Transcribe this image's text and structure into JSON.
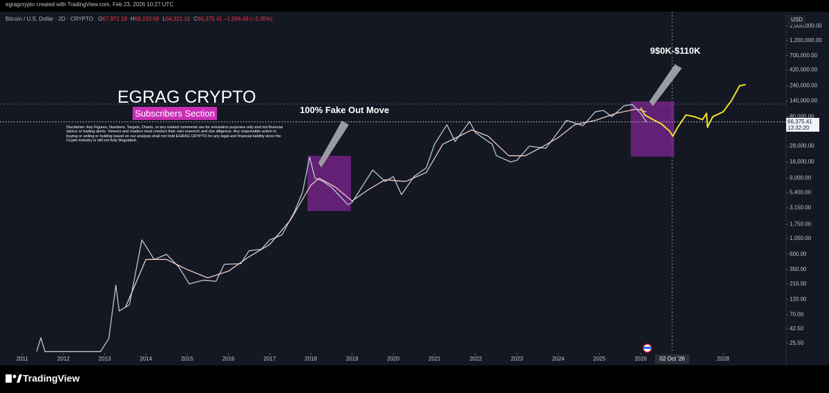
{
  "header": {
    "byline": "egragcrypto created with TradingView.com, Feb 23, 2026 10:27 UTC"
  },
  "chart_data": {
    "type": "line",
    "symbol": "Bitcoin / U.S. Dollar · 2D · CRYPTO",
    "ohlc": [
      {
        "label": "O",
        "value": "67,972.19"
      },
      {
        "label": "H",
        "value": "68,233.08"
      },
      {
        "label": "L",
        "value": "64,321.15"
      },
      {
        "label": "C",
        "value": "66,375.41"
      }
    ],
    "change": "−1,596.48 (−2.35%)",
    "currency": "USD",
    "log_scale": true,
    "xlim": [
      2010.46,
      2029.53
    ],
    "ylim": [
      18,
      3250000
    ],
    "xticks": [
      2011,
      2012,
      2013,
      2014,
      2015,
      2016,
      2017,
      2018,
      2019,
      2020,
      2021,
      2022,
      2023,
      2024,
      2025,
      2026,
      2028
    ],
    "yticks": [
      {
        "value": 2000000,
        "label": "2,000,000.00"
      },
      {
        "value": 1200000,
        "label": "1,200,000.00"
      },
      {
        "value": 700000,
        "label": "700,000.00"
      },
      {
        "value": 420000,
        "label": "420,000.00"
      },
      {
        "value": 240000,
        "label": "240,000.00"
      },
      {
        "value": 140000,
        "label": "140,000.00"
      },
      {
        "value": 80000,
        "label": "80,000.00"
      },
      {
        "value": 28000,
        "label": "28,000.00"
      },
      {
        "value": 16000,
        "label": "16,000.00"
      },
      {
        "value": 9000,
        "label": "9,000.00"
      },
      {
        "value": 5400,
        "label": "5,400.00"
      },
      {
        "value": 3150,
        "label": "3,150.00"
      },
      {
        "value": 1750,
        "label": "1,750.00"
      },
      {
        "value": 1050,
        "label": "1,050.00"
      },
      {
        "value": 600,
        "label": "600.00"
      },
      {
        "value": 350,
        "label": "350.00"
      },
      {
        "value": 210,
        "label": "210.00"
      },
      {
        "value": 120,
        "label": "120.00"
      },
      {
        "value": 70,
        "label": "70.00"
      },
      {
        "value": 42.5,
        "label": "42.50"
      },
      {
        "value": 25.5,
        "label": "25.50"
      }
    ],
    "series": [
      {
        "color": "#b9ccd8",
        "x": [
          2011.35,
          2011.45,
          2011.55,
          2012.9,
          2013.1,
          2013.27,
          2013.35,
          2013.6,
          2013.9,
          2014.0,
          2014.2,
          2014.5,
          2014.8,
          2015.05,
          2015.4,
          2015.7,
          2015.9,
          2016.3,
          2016.5,
          2016.8,
          2017.0,
          2017.3,
          2017.6,
          2017.8,
          2017.97,
          2018.1,
          2018.3,
          2018.5,
          2018.9,
          2019.0,
          2019.5,
          2019.8,
          2020.0,
          2020.2,
          2020.5,
          2020.8,
          2021.0,
          2021.3,
          2021.5,
          2021.85,
          2022.0,
          2022.4,
          2022.5,
          2022.85,
          2023.0,
          2023.3,
          2023.7,
          2023.95,
          2024.2,
          2024.6,
          2024.9,
          2025.1,
          2025.3,
          2025.6,
          2025.8,
          2026.0,
          2026.14
        ],
        "values": [
          19,
          31,
          19,
          19,
          30,
          200,
          80,
          100,
          1000,
          800,
          500,
          600,
          380,
          210,
          240,
          230,
          420,
          430,
          680,
          720,
          1000,
          1200,
          2700,
          5500,
          19000,
          9000,
          8000,
          6500,
          3500,
          3800,
          12000,
          8000,
          9500,
          5000,
          9500,
          13000,
          30000,
          60000,
          33000,
          67000,
          45000,
          30000,
          20000,
          16000,
          17000,
          28000,
          26000,
          42000,
          70000,
          58000,
          95000,
          100000,
          80000,
          118000,
          123000,
          90000,
          66375
        ]
      },
      {
        "color": "#f1cfc4",
        "x": [
          2013.5,
          2014.0,
          2014.5,
          2015.0,
          2015.5,
          2016.0,
          2016.5,
          2017.0,
          2017.5,
          2018.0,
          2018.2,
          2018.6,
          2019.0,
          2019.4,
          2019.8,
          2020.3,
          2020.8,
          2021.2,
          2021.6,
          2021.9,
          2022.3,
          2022.8,
          2023.2,
          2023.6,
          2024.0,
          2024.4,
          2024.9,
          2025.4,
          2025.9,
          2026.14
        ],
        "values": [
          90,
          500,
          500,
          350,
          260,
          330,
          550,
          850,
          2000,
          7000,
          9000,
          6500,
          4000,
          6000,
          8500,
          8000,
          11000,
          30000,
          40000,
          50000,
          40000,
          20000,
          20000,
          27000,
          38000,
          60000,
          70000,
          90000,
          105000,
          95000
        ]
      },
      {
        "color": "#f5e22b",
        "x": [
          2026.0,
          2026.1,
          2026.3,
          2026.5,
          2026.7,
          2026.78,
          2026.9,
          2027.1,
          2027.3,
          2027.5,
          2027.6,
          2027.62,
          2027.75,
          2028.0,
          2028.2,
          2028.4,
          2028.55
        ],
        "values": [
          110000,
          85000,
          72000,
          62000,
          48000,
          40000,
          55000,
          85000,
          80000,
          72000,
          90000,
          55000,
          80000,
          95000,
          140000,
          240000,
          250000
        ]
      }
    ],
    "last_price": {
      "value": 66375.41,
      "label": "66,375.41"
    },
    "countdown": "13:32:20",
    "crosshair_label": "02 Oct '26",
    "annotations": {
      "title": "EGRAG CRYPTO",
      "subtitle": "Subscribers Section",
      "disclaimer": "Disclaimer: Any Figures, Numbers, Targets, Charts, or any related comments are for simulation purposes only and not financial advice or trading alerts. Viewers and readers must conduct their own research and due diligence. Any responsible action in buying or selling or holding based on our analysis shall not hold EGRAG CRYPTO for any legal and financial liability since the Crypto industry is still not fully Regulated.",
      "fake_out": "100% Fake Out Move",
      "target": "9$0K-$110K"
    }
  },
  "footer": {
    "brand": "TradingView"
  }
}
